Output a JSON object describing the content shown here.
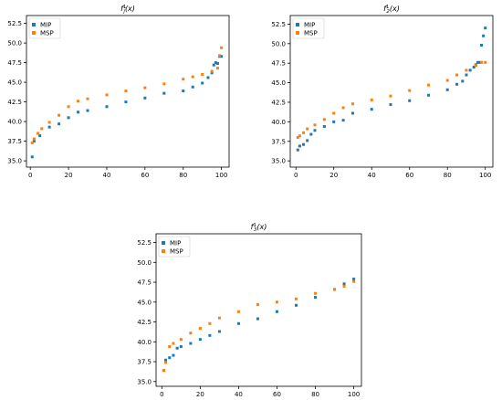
{
  "figure": {
    "legend_placement": "upper-left",
    "marker_shape": "square",
    "colors": {
      "MIP": "#1f77b4",
      "MSP": "#ff7f0e",
      "axes": "#000000",
      "background": "#ffffff"
    }
  },
  "chart_data": [
    {
      "type": "scatter",
      "title": "f¹ⱼ(x)",
      "title_main": "f",
      "title_sup": "1",
      "title_sub": "j",
      "title_tail": "(x)",
      "xlim": [
        -2,
        104
      ],
      "ylim": [
        34.2,
        53.5
      ],
      "xticks": [
        0,
        20,
        40,
        60,
        80,
        100
      ],
      "yticks": [
        35.0,
        37.5,
        40.0,
        42.5,
        45.0,
        47.5,
        50.0,
        52.5
      ],
      "grid": false,
      "legend": [
        "MIP",
        "MSP"
      ],
      "series": [
        {
          "name": "MIP",
          "x": [
            1,
            2,
            5,
            10,
            15,
            20,
            25,
            30,
            40,
            50,
            60,
            70,
            80,
            85,
            90,
            93,
            95,
            96,
            97,
            98,
            99,
            100
          ],
          "y": [
            35.5,
            37.5,
            38.2,
            39.3,
            39.7,
            40.5,
            41.2,
            41.4,
            41.9,
            42.5,
            43.0,
            43.6,
            43.9,
            44.4,
            44.9,
            45.6,
            46.2,
            47.2,
            47.5,
            47.4,
            48.3,
            48.3
          ]
        },
        {
          "name": "MSP",
          "x": [
            1,
            2,
            4,
            6,
            10,
            15,
            20,
            25,
            30,
            40,
            50,
            60,
            70,
            80,
            85,
            90,
            95,
            98,
            99,
            100
          ],
          "y": [
            37.3,
            37.8,
            38.5,
            39.1,
            39.9,
            40.8,
            41.9,
            42.6,
            42.9,
            43.4,
            43.9,
            44.3,
            44.8,
            45.4,
            45.7,
            46.0,
            46.4,
            46.8,
            48.4,
            49.4
          ]
        }
      ]
    },
    {
      "type": "scatter",
      "title": "f¹₂(x)",
      "title_main": "f",
      "title_sup": "1",
      "title_sub": "2",
      "title_tail": "(x)",
      "xlim": [
        -3,
        104
      ],
      "ylim": [
        34.2,
        53.6
      ],
      "xticks": [
        0,
        20,
        40,
        60,
        80,
        100
      ],
      "yticks": [
        35.0,
        37.5,
        40.0,
        42.5,
        45.0,
        47.5,
        50.0,
        52.5
      ],
      "grid": false,
      "legend": [
        "MIP",
        "MSP"
      ],
      "series": [
        {
          "name": "MIP",
          "x": [
            1,
            2,
            4,
            6,
            8,
            10,
            15,
            20,
            25,
            30,
            40,
            50,
            60,
            70,
            80,
            85,
            88,
            90,
            92,
            94,
            95,
            96,
            97,
            98,
            99,
            100
          ],
          "y": [
            36.4,
            36.9,
            37.1,
            37.6,
            38.4,
            38.9,
            39.4,
            40.0,
            40.2,
            41.1,
            41.6,
            42.2,
            42.7,
            43.4,
            44.1,
            44.8,
            45.2,
            46.0,
            46.6,
            47.0,
            47.3,
            47.6,
            47.6,
            49.8,
            51.0,
            52.0
          ]
        },
        {
          "name": "MSP",
          "x": [
            1,
            2,
            4,
            6,
            10,
            15,
            20,
            25,
            30,
            40,
            50,
            60,
            70,
            80,
            85,
            90,
            95,
            98,
            100
          ],
          "y": [
            38.0,
            38.2,
            38.6,
            39.1,
            39.6,
            40.3,
            41.1,
            41.8,
            42.3,
            42.8,
            43.3,
            44.0,
            44.7,
            45.3,
            46.0,
            46.6,
            47.2,
            47.6,
            47.6
          ]
        }
      ]
    },
    {
      "type": "scatter",
      "title": "f¹₃(x)",
      "title_main": "f",
      "title_sup": "1",
      "title_sub": "3",
      "title_tail": "(x)",
      "xlim": [
        -3,
        104
      ],
      "ylim": [
        34.4,
        53.6
      ],
      "xticks": [
        0,
        20,
        40,
        60,
        80,
        100
      ],
      "yticks": [
        35.0,
        37.5,
        40.0,
        42.5,
        45.0,
        47.5,
        50.0,
        52.5
      ],
      "grid": false,
      "legend": [
        "MIP",
        "MSP"
      ],
      "series": [
        {
          "name": "MIP",
          "x": [
            1,
            2,
            4,
            6,
            8,
            10,
            15,
            20,
            25,
            30,
            40,
            50,
            60,
            70,
            80,
            90,
            95,
            100
          ],
          "y": [
            36.4,
            37.7,
            38.0,
            38.3,
            39.2,
            39.4,
            39.8,
            40.3,
            40.8,
            41.3,
            42.3,
            42.9,
            43.8,
            44.6,
            45.6,
            46.6,
            47.3,
            47.9
          ]
        },
        {
          "name": "MSP",
          "x": [
            1,
            2,
            4,
            6,
            10,
            15,
            20,
            25,
            30,
            40,
            50,
            60,
            70,
            80,
            90,
            95,
            100
          ],
          "y": [
            36.4,
            37.4,
            39.4,
            39.8,
            40.3,
            41.1,
            41.7,
            42.3,
            43.0,
            43.8,
            44.7,
            45.0,
            45.4,
            46.1,
            46.6,
            47.0,
            47.6
          ]
        }
      ]
    }
  ]
}
